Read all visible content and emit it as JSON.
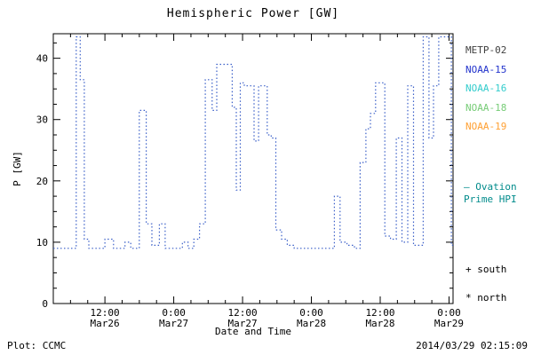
{
  "chart_data": {
    "type": "line",
    "title": "Hemispheric Power [GW]",
    "xlabel": "Date and Time",
    "ylabel": "P [GW]",
    "x_unit": "hours since 2014-03-26 00:00 UT",
    "xlim": [
      3,
      72.7
    ],
    "ylim": [
      0,
      44
    ],
    "yticks": [
      0,
      10,
      20,
      30,
      40
    ],
    "y_minor_step": 2.5,
    "x_minor_step": 3,
    "grid": false,
    "legend_position": "right",
    "xticks": [
      {
        "hour": 12,
        "time": "12:00",
        "date": "Mar26"
      },
      {
        "hour": 24,
        "time": "0:00",
        "date": "Mar27"
      },
      {
        "hour": 36,
        "time": "12:00",
        "date": "Mar27"
      },
      {
        "hour": 48,
        "time": "0:00",
        "date": "Mar28"
      },
      {
        "hour": 60,
        "time": "12:00",
        "date": "Mar28"
      },
      {
        "hour": 72,
        "time": "0:00",
        "date": "Mar29"
      }
    ],
    "series": [
      {
        "name": "Hemispheric Power Index",
        "color": "#3a5fc8",
        "style": "dotted-step",
        "steps": [
          [
            3.0,
            9
          ],
          [
            7.0,
            43.5
          ],
          [
            7.7,
            36.5
          ],
          [
            8.4,
            10.5
          ],
          [
            9.2,
            9
          ],
          [
            12.0,
            10.5
          ],
          [
            13.5,
            9
          ],
          [
            15.5,
            10
          ],
          [
            16.5,
            9
          ],
          [
            18.0,
            31.5
          ],
          [
            19.2,
            13
          ],
          [
            20.2,
            9.5
          ],
          [
            21.5,
            13
          ],
          [
            22.5,
            9
          ],
          [
            25.5,
            10
          ],
          [
            26.5,
            9
          ],
          [
            27.5,
            10.5
          ],
          [
            28.5,
            13
          ],
          [
            29.5,
            36.5
          ],
          [
            30.7,
            31.5
          ],
          [
            31.5,
            39
          ],
          [
            34.2,
            32
          ],
          [
            34.9,
            18.5
          ],
          [
            35.6,
            36
          ],
          [
            36.3,
            35.5
          ],
          [
            38.0,
            26.5
          ],
          [
            38.8,
            35.5
          ],
          [
            40.3,
            27.5
          ],
          [
            41.0,
            27
          ],
          [
            41.8,
            12
          ],
          [
            42.8,
            10.5
          ],
          [
            43.8,
            9.5
          ],
          [
            45.0,
            9
          ],
          [
            52.0,
            17.5
          ],
          [
            53.0,
            10
          ],
          [
            54.2,
            9.5
          ],
          [
            55.5,
            9
          ],
          [
            56.5,
            23
          ],
          [
            57.5,
            28.5
          ],
          [
            58.3,
            31
          ],
          [
            59.2,
            36
          ],
          [
            60.8,
            11
          ],
          [
            61.8,
            10.5
          ],
          [
            62.8,
            27
          ],
          [
            63.8,
            10
          ],
          [
            64.8,
            35.5
          ],
          [
            65.8,
            9.5
          ],
          [
            67.5,
            43.5
          ],
          [
            68.5,
            27
          ],
          [
            69.3,
            35.5
          ],
          [
            70.2,
            43.5
          ],
          [
            72.4,
            9.5
          ]
        ]
      }
    ],
    "legend": [
      {
        "label": "METP-02",
        "color": "#404040"
      },
      {
        "label": "NOAA-15",
        "color": "#2233cc"
      },
      {
        "label": "NOAA-16",
        "color": "#33cccc"
      },
      {
        "label": "NOAA-18",
        "color": "#77cc77"
      },
      {
        "label": "NOAA-19",
        "color": "#ffa033"
      }
    ]
  },
  "side_labels": {
    "ovation_line1": "– Ovation",
    "ovation_line2": "Prime HPI",
    "ovation_color": "#008b8b",
    "south": "+ south",
    "north": "* north"
  },
  "footer": {
    "plot_credit": "Plot: CCMC",
    "timestamp": "2014/03/29 02:15:09"
  }
}
